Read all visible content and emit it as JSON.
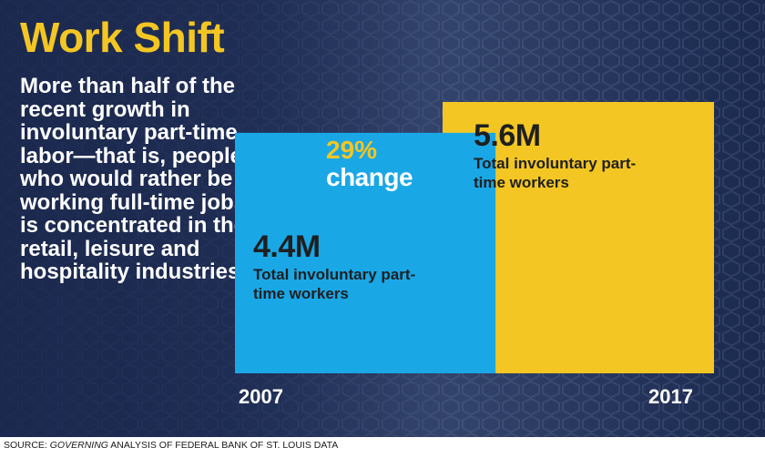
{
  "title": "Work Shift",
  "description": "More than half of the recent growth in involuntary part-time labor—that is, people who would rather be working full-time jobs—is concentrated in the retail, leisure and hospitality industries.",
  "change": {
    "percent": "29%",
    "word": "change"
  },
  "source": {
    "prefix": "SOURCE: ",
    "italic": "GOVERNING",
    "rest": " ANALYSIS OF FEDERAL BANK OF ST. LOUIS DATA"
  },
  "colors": {
    "yellow": "#f3c623",
    "blue": "#1aa7e6",
    "navy": "#1e2f57"
  },
  "chart_data": {
    "type": "bar",
    "categories": [
      "2007",
      "2017"
    ],
    "values": [
      4.4,
      5.6
    ],
    "value_labels": [
      "4.4M",
      "5.6M"
    ],
    "bar_labels": [
      "Total involuntary part-time workers",
      "Total involuntary part-time workers"
    ],
    "bar_colors": [
      "#1aa7e6",
      "#f3c623"
    ],
    "annotation": "29% change",
    "unit": "million workers"
  }
}
